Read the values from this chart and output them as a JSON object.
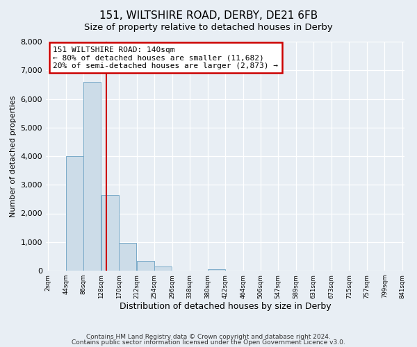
{
  "title": "151, WILTSHIRE ROAD, DERBY, DE21 6FB",
  "subtitle": "Size of property relative to detached houses in Derby",
  "xlabel": "Distribution of detached houses by size in Derby",
  "ylabel": "Number of detached properties",
  "bar_color": "#ccdce8",
  "bar_edge_color": "#7aaac8",
  "vline_x": 140,
  "vline_color": "#cc0000",
  "annotation_line1": "151 WILTSHIRE ROAD: 140sqm",
  "annotation_line2": "← 80% of detached houses are smaller (11,682)",
  "annotation_line3": "20% of semi-detached houses are larger (2,873) →",
  "annotation_box_color": "#cc0000",
  "ylim": [
    0,
    8000
  ],
  "yticks": [
    0,
    1000,
    2000,
    3000,
    4000,
    5000,
    6000,
    7000,
    8000
  ],
  "bin_edges": [
    2,
    44,
    86,
    128,
    170,
    212,
    254,
    296,
    338,
    380,
    422,
    464,
    506,
    547,
    589,
    631,
    673,
    715,
    757,
    799,
    841
  ],
  "bin_heights": [
    4,
    4000,
    6600,
    2650,
    975,
    330,
    140,
    0,
    0,
    50,
    0,
    0,
    0,
    0,
    0,
    0,
    0,
    0,
    0,
    0
  ],
  "xtick_labels": [
    "2sqm",
    "44sqm",
    "86sqm",
    "128sqm",
    "170sqm",
    "212sqm",
    "254sqm",
    "296sqm",
    "338sqm",
    "380sqm",
    "422sqm",
    "464sqm",
    "506sqm",
    "547sqm",
    "589sqm",
    "631sqm",
    "673sqm",
    "715sqm",
    "757sqm",
    "799sqm",
    "841sqm"
  ],
  "footer_line1": "Contains HM Land Registry data © Crown copyright and database right 2024.",
  "footer_line2": "Contains public sector information licensed under the Open Government Licence v3.0.",
  "bg_color": "#e8eef4",
  "plot_bg_color": "#e8eef4",
  "title_fontsize": 11,
  "subtitle_fontsize": 9.5
}
